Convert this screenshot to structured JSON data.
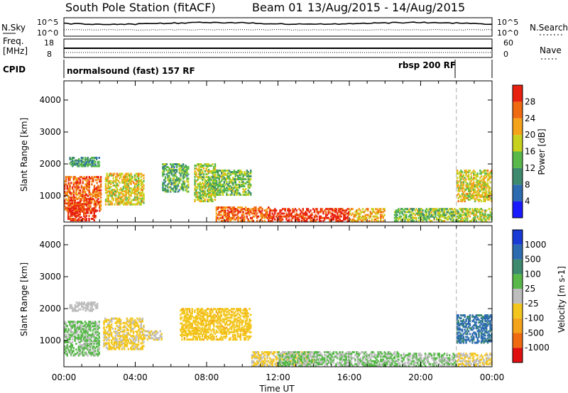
{
  "header": {
    "title": "South Pole Station (fitACF)",
    "beam": "Beam 01",
    "date_range": "13/Aug/2015 - 14/Aug/2015"
  },
  "status_panels": {
    "nsky_label": "N.Sky",
    "nsearch_label": "N.Search",
    "freq_label": "Freq.",
    "freq_unit": "[MHz]",
    "nave_label": "Nave",
    "cpid_label": "CPID",
    "noise_ticks": [
      "10^5",
      "10^0"
    ],
    "noise_ticks_right": [
      "10^5",
      "10^0"
    ],
    "freq_ticks": [
      "18",
      "8"
    ],
    "nave_ticks": [
      "60",
      "0"
    ],
    "cpid_segments": [
      {
        "label": "normalsound (fast) 157 RF",
        "start_hour": 0
      },
      {
        "label": "rbsp 200 RF",
        "start_hour": 22
      }
    ]
  },
  "chart_data": [
    {
      "type": "heatmap",
      "title": "",
      "xlabel": "Time UT",
      "ylabel": "Slant Range [km]",
      "x_ticks": [
        "00:00",
        "04:00",
        "08:00",
        "12:00",
        "16:00",
        "20:00",
        "00:00"
      ],
      "xlim_hours": [
        0,
        24
      ],
      "ylim": [
        180,
        4600
      ],
      "y_ticks": [
        1000,
        2000,
        3000,
        4000
      ],
      "colorbar": {
        "label": "Power [dB]",
        "ticks": [
          "4",
          "8",
          "12",
          "16",
          "20",
          "24",
          "28"
        ],
        "range": [
          0,
          30
        ],
        "colors": [
          "#1a1aff",
          "#2c6bb0",
          "#3d8a6e",
          "#58b84a",
          "#c8d21e",
          "#f5a31a",
          "#f06a12",
          "#e82010"
        ]
      },
      "vertical_marker_hour": 22,
      "clusters": [
        {
          "t0": 0.0,
          "t1": 2.1,
          "r0": 500,
          "r1": 1600,
          "level": 24
        },
        {
          "t0": 0.2,
          "t1": 1.8,
          "r0": 200,
          "r1": 800,
          "level": 28
        },
        {
          "t0": 0.3,
          "t1": 2.0,
          "r0": 1900,
          "r1": 2200,
          "level": 10
        },
        {
          "t0": 2.3,
          "t1": 4.5,
          "r0": 700,
          "r1": 1700,
          "level": 18
        },
        {
          "t0": 5.5,
          "t1": 7.0,
          "r0": 1100,
          "r1": 2000,
          "level": 12
        },
        {
          "t0": 7.3,
          "t1": 8.5,
          "r0": 800,
          "r1": 2000,
          "level": 16
        },
        {
          "t0": 8.3,
          "t1": 10.5,
          "r0": 1000,
          "r1": 1800,
          "level": 14
        },
        {
          "t0": 8.5,
          "t1": 11.5,
          "r0": 180,
          "r1": 650,
          "level": 24
        },
        {
          "t0": 11.5,
          "t1": 16.0,
          "r0": 180,
          "r1": 600,
          "level": 28
        },
        {
          "t0": 16.0,
          "t1": 18.0,
          "r0": 180,
          "r1": 600,
          "level": 20
        },
        {
          "t0": 18.5,
          "t1": 22.0,
          "r0": 180,
          "r1": 600,
          "level": 14
        },
        {
          "t0": 22.0,
          "t1": 24.0,
          "r0": 800,
          "r1": 1800,
          "level": 18
        },
        {
          "t0": 22.0,
          "t1": 24.0,
          "r0": 180,
          "r1": 600,
          "level": 16
        }
      ]
    },
    {
      "type": "heatmap",
      "title": "",
      "xlabel": "Time UT",
      "ylabel": "Slant Range [km]",
      "x_ticks": [
        "00:00",
        "04:00",
        "08:00",
        "12:00",
        "16:00",
        "20:00",
        "00:00"
      ],
      "xlim_hours": [
        0,
        24
      ],
      "ylim": [
        180,
        4600
      ],
      "y_ticks": [
        1000,
        2000,
        3000,
        4000
      ],
      "colorbar": {
        "label": "Velocity [m s-1]",
        "ticks": [
          "1000",
          "500",
          "100",
          "25",
          "-25",
          "-100",
          "-500",
          "-1000"
        ],
        "range": [
          -1000,
          1000
        ],
        "colors": [
          "#e01010",
          "#f06a12",
          "#f5a31a",
          "#f3c61e",
          "#bdbdbd",
          "#58b84a",
          "#3d8a6e",
          "#2c6bb0",
          "#1a3ad6"
        ]
      },
      "vertical_marker_hour": 22,
      "clusters": [
        {
          "t0": 0.0,
          "t1": 2.0,
          "r0": 500,
          "r1": 1600,
          "level": 150
        },
        {
          "t0": 0.3,
          "t1": 1.9,
          "r0": 1900,
          "r1": 2200,
          "level": 0
        },
        {
          "t0": 2.2,
          "t1": 4.5,
          "r0": 700,
          "r1": 1700,
          "level": -150
        },
        {
          "t0": 4.5,
          "t1": 5.5,
          "r0": 1000,
          "r1": 1300,
          "level": -100
        },
        {
          "t0": 6.5,
          "t1": 10.5,
          "r0": 1000,
          "r1": 2000,
          "level": -250
        },
        {
          "t0": 10.5,
          "t1": 14.0,
          "r0": 180,
          "r1": 650,
          "level": -150
        },
        {
          "t0": 12.0,
          "t1": 19.0,
          "r0": 180,
          "r1": 650,
          "level": 120
        },
        {
          "t0": 19.0,
          "t1": 22.0,
          "r0": 180,
          "r1": 600,
          "level": 100
        },
        {
          "t0": 22.0,
          "t1": 24.0,
          "r0": 900,
          "r1": 1800,
          "level": 600
        },
        {
          "t0": 22.0,
          "t1": 24.0,
          "r0": 180,
          "r1": 600,
          "level": -120
        }
      ]
    }
  ]
}
